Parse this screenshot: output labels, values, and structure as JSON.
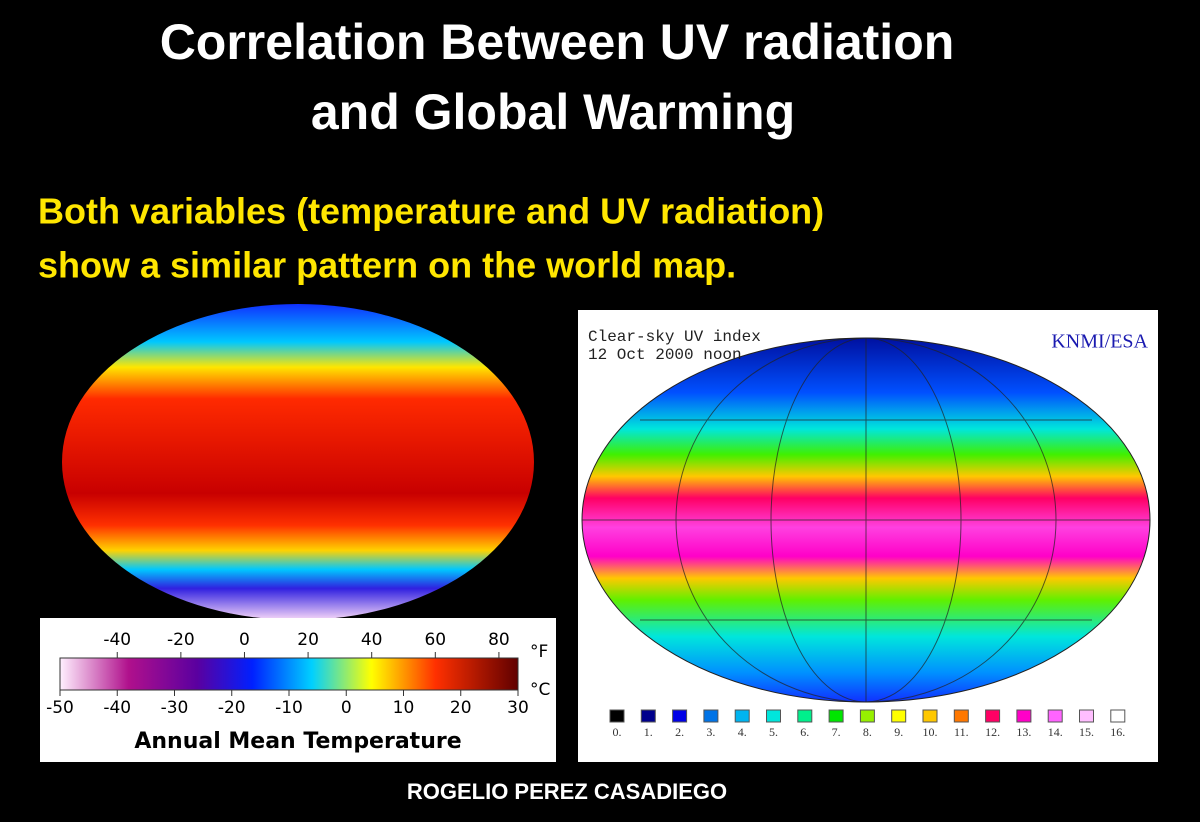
{
  "header": {
    "title_lines": [
      "Correlation Between UV radiation",
      "and Global Warming"
    ],
    "subtitle_lines": [
      "Both variables (temperature and UV radiation)",
      "show a similar pattern on the world map."
    ]
  },
  "temperature_map": {
    "fahrenheit_ticks": [
      -40,
      -20,
      0,
      20,
      40,
      60,
      80
    ],
    "fahrenheit_unit": "°F",
    "celsius_ticks": [
      -50,
      -40,
      -30,
      -20,
      -10,
      0,
      10,
      20,
      30
    ],
    "celsius_unit": "°C",
    "caption": "Annual Mean Temperature"
  },
  "uv_map": {
    "title": "Clear-sky UV index",
    "date": "12 Oct 2000 noon",
    "source": "KNMI/ESA",
    "legend": [
      {
        "label": "0.",
        "color": "#000000"
      },
      {
        "label": "1.",
        "color": "#00008c"
      },
      {
        "label": "2.",
        "color": "#0000e6"
      },
      {
        "label": "3.",
        "color": "#0073e6"
      },
      {
        "label": "4.",
        "color": "#00b4f0"
      },
      {
        "label": "5.",
        "color": "#00e6dc"
      },
      {
        "label": "6.",
        "color": "#00f08c"
      },
      {
        "label": "7.",
        "color": "#00e600"
      },
      {
        "label": "8.",
        "color": "#96f000"
      },
      {
        "label": "9.",
        "color": "#ffff00"
      },
      {
        "label": "10.",
        "color": "#ffc800"
      },
      {
        "label": "11.",
        "color": "#ff7800"
      },
      {
        "label": "12.",
        "color": "#ff0064"
      },
      {
        "label": "13.",
        "color": "#ff00c8"
      },
      {
        "label": "14.",
        "color": "#ff64ff"
      },
      {
        "label": "15.",
        "color": "#ffbeff"
      },
      {
        "label": "16.",
        "color": "#ffffff"
      }
    ]
  },
  "footer": {
    "author": "ROGELIO PEREZ CASADIEGO"
  }
}
